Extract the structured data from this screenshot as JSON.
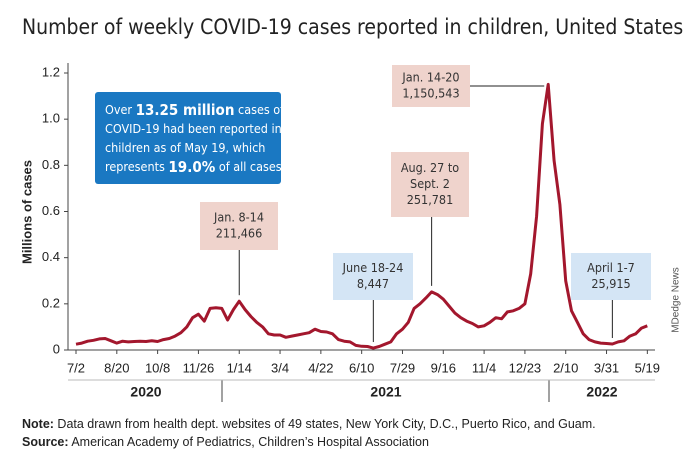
{
  "chart_data": {
    "type": "line",
    "title": "Number of weekly COVID-19 cases reported in children, United States",
    "y_label": "Millions of cases",
    "categories": [
      "7/2",
      null,
      null,
      null,
      null,
      null,
      null,
      "8/20",
      null,
      null,
      null,
      null,
      null,
      null,
      "10/8",
      null,
      null,
      null,
      null,
      null,
      null,
      "11/26",
      null,
      null,
      null,
      null,
      null,
      null,
      "1/14",
      null,
      null,
      null,
      null,
      null,
      null,
      "3/4",
      null,
      null,
      null,
      null,
      null,
      null,
      "4/22",
      null,
      null,
      null,
      null,
      null,
      null,
      "6/10",
      null,
      null,
      null,
      null,
      null,
      null,
      "7/29",
      null,
      null,
      null,
      null,
      null,
      null,
      "9/16",
      null,
      null,
      null,
      null,
      null,
      null,
      "11/4",
      null,
      null,
      null,
      null,
      null,
      null,
      "12/23",
      null,
      null,
      null,
      null,
      null,
      null,
      "2/10",
      null,
      null,
      null,
      null,
      null,
      null,
      "3/31",
      null,
      null,
      null,
      null,
      null,
      null,
      "5/19"
    ],
    "values": [
      0.025,
      0.03,
      0.038,
      0.042,
      0.048,
      0.05,
      0.04,
      0.03,
      0.038,
      0.035,
      0.037,
      0.038,
      0.037,
      0.04,
      0.037,
      0.045,
      0.05,
      0.06,
      0.075,
      0.1,
      0.14,
      0.155,
      0.125,
      0.18,
      0.183,
      0.18,
      0.13,
      0.175,
      0.211466,
      0.175,
      0.145,
      0.12,
      0.1,
      0.07,
      0.065,
      0.065,
      0.055,
      0.06,
      0.065,
      0.07,
      0.075,
      0.09,
      0.08,
      0.078,
      0.07,
      0.045,
      0.038,
      0.035,
      0.02,
      0.016,
      0.015,
      0.008447,
      0.015,
      0.025,
      0.035,
      0.07,
      0.09,
      0.12,
      0.18,
      0.2,
      0.225,
      0.251781,
      0.24,
      0.22,
      0.19,
      0.16,
      0.14,
      0.125,
      0.115,
      0.1,
      0.105,
      0.12,
      0.14,
      0.135,
      0.165,
      0.17,
      0.18,
      0.2,
      0.33,
      0.58,
      0.98,
      1.150543,
      0.82,
      0.63,
      0.3,
      0.17,
      0.12,
      0.07,
      0.045,
      0.035,
      0.03,
      0.028,
      0.025915,
      0.035,
      0.04,
      0.06,
      0.07,
      0.095,
      0.105
    ],
    "color": "#a3172d",
    "ylim": [
      0,
      1.2
    ],
    "yticks": [
      0,
      0.2,
      0.4,
      0.6,
      0.8,
      {
        "value": 1,
        "label": "1.0"
      },
      1.2
    ],
    "years": [
      "2020",
      "2021",
      "2022"
    ],
    "annotations": [
      {
        "lines": [
          "Jan. 8-14",
          "211,466"
        ],
        "color": "#efd3cc"
      },
      {
        "lines": [
          "June 18-24",
          "8,447"
        ],
        "color": "#d4e5f5"
      },
      {
        "lines": [
          "Aug. 27 to",
          "Sept. 2",
          "251,781"
        ],
        "color": "#efd3cc"
      },
      {
        "lines": [
          "Jan. 14-20",
          "1,150,543"
        ],
        "color": "#efd3cc"
      },
      {
        "lines": [
          "April 1-7",
          "25,915"
        ],
        "color": "#d4e5f5"
      }
    ],
    "callout": {
      "color": "#1a78c2",
      "lines": [
        [
          "Over ",
          "13.25 million",
          " cases of"
        ],
        [
          "COVID-19 had been reported in"
        ],
        [
          "children as of May 19, which"
        ],
        [
          "represents ",
          "19.0%",
          " of all cases."
        ]
      ]
    },
    "credit": "MDedge News",
    "notes": [
      {
        "label": "Note:",
        "text": " Data drawn from health dept. websites of 49 states, New York City, D.C., Puerto Rico, and Guam."
      },
      {
        "label": "Source:",
        "text": " American Academy of Pediatrics, Children’s Hospital Association"
      }
    ]
  }
}
